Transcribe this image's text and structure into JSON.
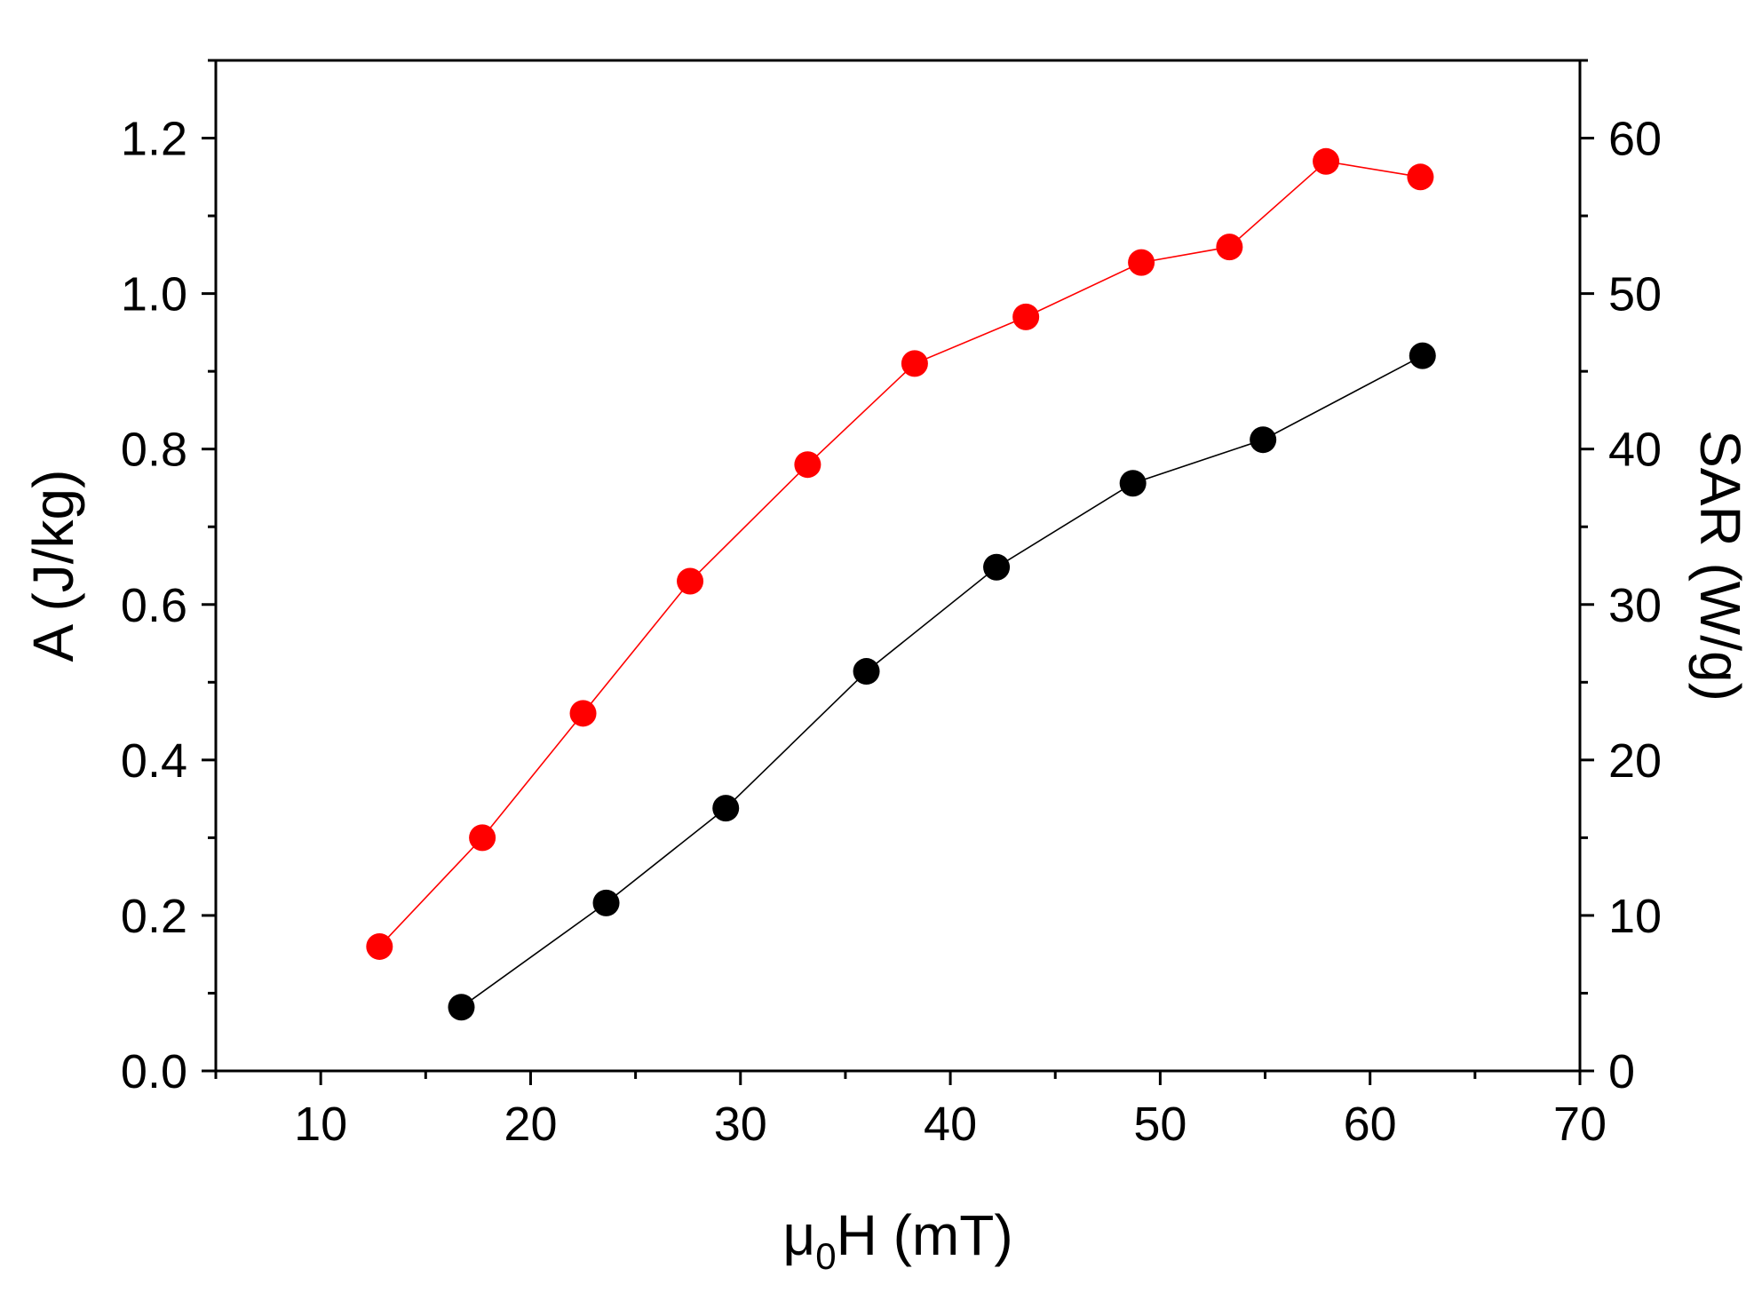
{
  "chart_data": {
    "type": "scatter",
    "x_axis": {
      "label_main": "μ",
      "label_sub": "0",
      "label_rest": "H (mT)",
      "range": [
        5,
        70
      ],
      "ticks": [
        10,
        20,
        30,
        40,
        50,
        60,
        70
      ]
    },
    "y_left": {
      "label": "A (J/kg)",
      "range": [
        0,
        1.3
      ],
      "ticks": [
        0.0,
        0.2,
        0.4,
        0.6,
        0.8,
        1.0,
        1.2
      ],
      "tick_labels": [
        "0.0",
        "0.2",
        "0.4",
        "0.6",
        "0.8",
        "1.0",
        "1.2"
      ]
    },
    "y_right": {
      "label": "SAR (W/g)",
      "range": [
        0,
        65
      ],
      "ticks": [
        0,
        10,
        20,
        30,
        40,
        50,
        60
      ]
    },
    "series": [
      {
        "axis": "left",
        "color": "#ff0000",
        "x": [
          12.8,
          17.7,
          22.5,
          27.6,
          33.2,
          38.3,
          43.6,
          49.1,
          53.3,
          57.9,
          62.4
        ],
        "y": [
          0.16,
          0.3,
          0.46,
          0.63,
          0.78,
          0.91,
          0.97,
          1.04,
          1.06,
          1.17,
          1.15
        ]
      },
      {
        "axis": "right",
        "color": "#000000",
        "x": [
          16.7,
          23.6,
          29.3,
          36.0,
          42.2,
          48.7,
          54.9,
          62.5
        ],
        "y": [
          4.1,
          10.8,
          16.9,
          25.7,
          32.4,
          37.8,
          40.6,
          46.0
        ]
      }
    ],
    "grid": false,
    "legend": "none"
  }
}
